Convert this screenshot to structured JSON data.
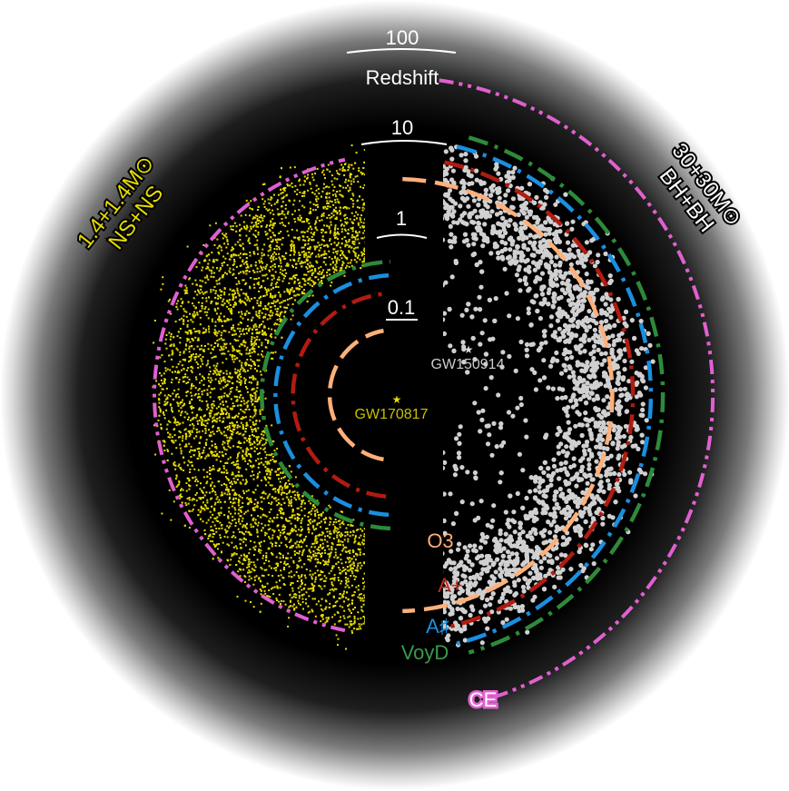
{
  "redshift_scale": {
    "title": "Redshift",
    "ticks": [
      {
        "label": "0.1",
        "z": 0.1
      },
      {
        "label": "1",
        "z": 1
      },
      {
        "label": "10",
        "z": 10
      },
      {
        "label": "100",
        "z": 100
      }
    ]
  },
  "populations": {
    "left": {
      "line1": "1.4+1.4M⊙",
      "line2": "NS+NS",
      "color": "#e6dc00"
    },
    "right": {
      "line1": "30+30M⊙",
      "line2": "BH+BH",
      "color": "#ffffff"
    }
  },
  "events": [
    {
      "name": "GW170817",
      "color": "#c8c000"
    },
    {
      "name": "GW150914",
      "color": "#cccccc"
    }
  ],
  "detectors": [
    {
      "label": "O3",
      "color": "#ffb07a",
      "bns_horizon_z": 0.05,
      "bbh_horizon_z": 1.2
    },
    {
      "label": "A+",
      "color": "#b01c10",
      "bns_horizon_z": 0.12,
      "bbh_horizon_z": 3.2
    },
    {
      "label": "A♯",
      "color": "#1a8fe0",
      "bns_horizon_z": 0.22,
      "bbh_horizon_z": 5.0
    },
    {
      "label": "VoyD",
      "color": "#2e8a3a",
      "bns_horizon_z": 0.3,
      "bbh_horizon_z": 6.2
    },
    {
      "label": "CE",
      "color": "#e060d0",
      "bns_horizon_z": 5.0,
      "bbh_horizon_z": 60
    }
  ]
}
